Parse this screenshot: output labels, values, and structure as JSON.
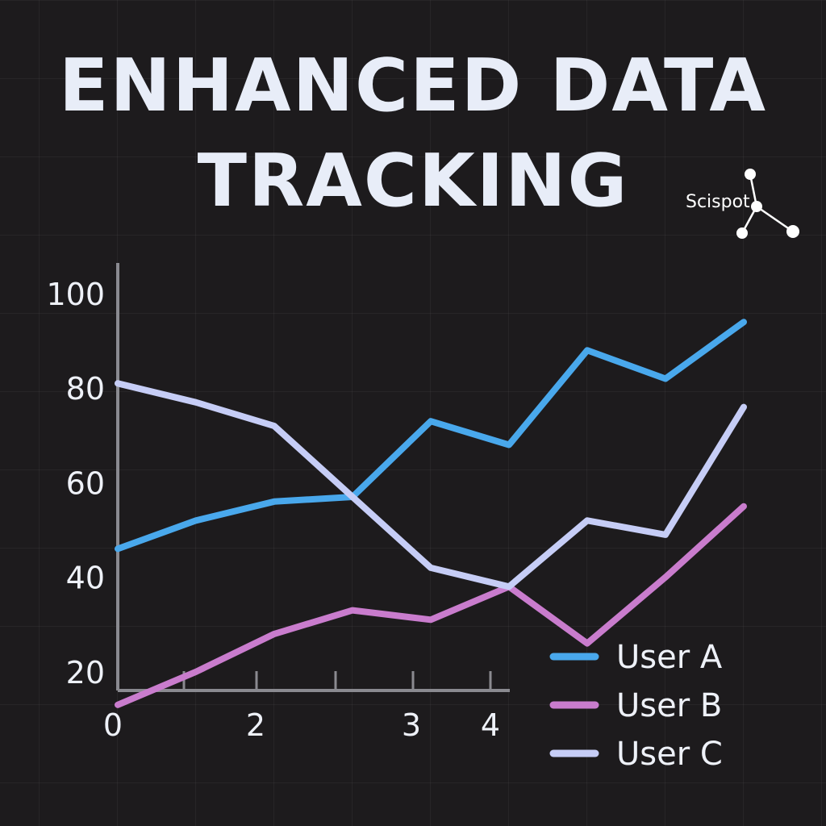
{
  "title_lines": [
    "ENHANCED DATA",
    "TRACKING"
  ],
  "logo": {
    "text": "Scispot",
    "icon": "network-node-icon"
  },
  "chart_data": {
    "type": "line",
    "title": "ENHANCED DATA TRACKING",
    "xlabel": "",
    "ylabel": "",
    "x_ticks": [
      "0",
      "2",
      "3",
      "4"
    ],
    "y_ticks": [
      20,
      40,
      60,
      80,
      100
    ],
    "ylim": [
      0,
      100
    ],
    "grid": true,
    "legend": "bottom-right",
    "x": [
      0,
      0.5,
      1,
      1.5,
      2,
      2.5,
      3,
      3.5,
      4
    ],
    "series": [
      {
        "name": "User A",
        "color": "#49a8ec",
        "values": [
          46,
          52,
          56,
          57,
          73,
          68,
          88,
          82,
          94
        ]
      },
      {
        "name": "User B",
        "color": "#c97ccd",
        "values": [
          13,
          20,
          28,
          33,
          31,
          38,
          26,
          40,
          55
        ]
      },
      {
        "name": "User C",
        "color": "#c6cdf6",
        "values": [
          81,
          77,
          72,
          57,
          42,
          38,
          52,
          49,
          76
        ]
      }
    ]
  }
}
